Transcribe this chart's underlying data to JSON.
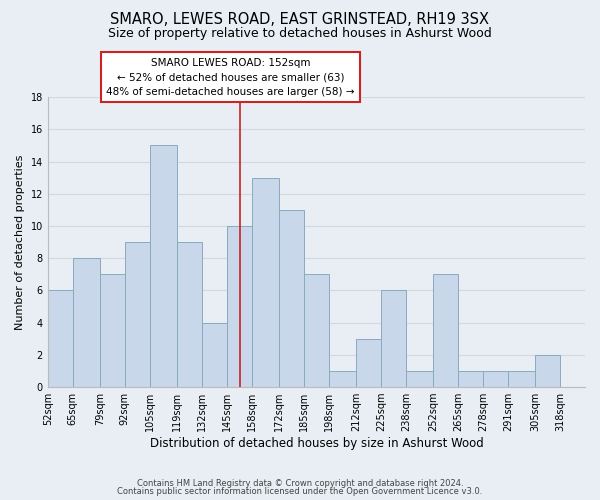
{
  "title": "SMARO, LEWES ROAD, EAST GRINSTEAD, RH19 3SX",
  "subtitle": "Size of property relative to detached houses in Ashurst Wood",
  "xlabel": "Distribution of detached houses by size in Ashurst Wood",
  "ylabel": "Number of detached properties",
  "bar_color": "#c8d8ea",
  "bar_edge_color": "#8aaac0",
  "background_color": "#e8eef4",
  "grid_color": "#d0d8e0",
  "tick_labels": [
    "52sqm",
    "65sqm",
    "79sqm",
    "92sqm",
    "105sqm",
    "119sqm",
    "132sqm",
    "145sqm",
    "158sqm",
    "172sqm",
    "185sqm",
    "198sqm",
    "212sqm",
    "225sqm",
    "238sqm",
    "252sqm",
    "265sqm",
    "278sqm",
    "291sqm",
    "305sqm",
    "318sqm"
  ],
  "bar_heights": [
    6,
    8,
    7,
    9,
    15,
    9,
    4,
    10,
    13,
    11,
    7,
    1,
    3,
    6,
    1,
    7,
    1,
    1,
    1,
    2,
    0
  ],
  "bin_edges": [
    52,
    65,
    79,
    92,
    105,
    119,
    132,
    145,
    158,
    172,
    185,
    198,
    212,
    225,
    238,
    252,
    265,
    278,
    291,
    305,
    318,
    331
  ],
  "reference_line_x": 152,
  "reference_line_label": "SMARO LEWES ROAD: 152sqm",
  "annotation_line1": "← 52% of detached houses are smaller (63)",
  "annotation_line2": "48% of semi-detached houses are larger (58) →",
  "ylim": [
    0,
    18
  ],
  "yticks": [
    0,
    2,
    4,
    6,
    8,
    10,
    12,
    14,
    16,
    18
  ],
  "footer_line1": "Contains HM Land Registry data © Crown copyright and database right 2024.",
  "footer_line2": "Contains public sector information licensed under the Open Government Licence v3.0.",
  "title_fontsize": 10.5,
  "subtitle_fontsize": 9,
  "xlabel_fontsize": 8.5,
  "ylabel_fontsize": 8,
  "tick_fontsize": 7,
  "footer_fontsize": 6,
  "annotation_fontsize": 7.5
}
